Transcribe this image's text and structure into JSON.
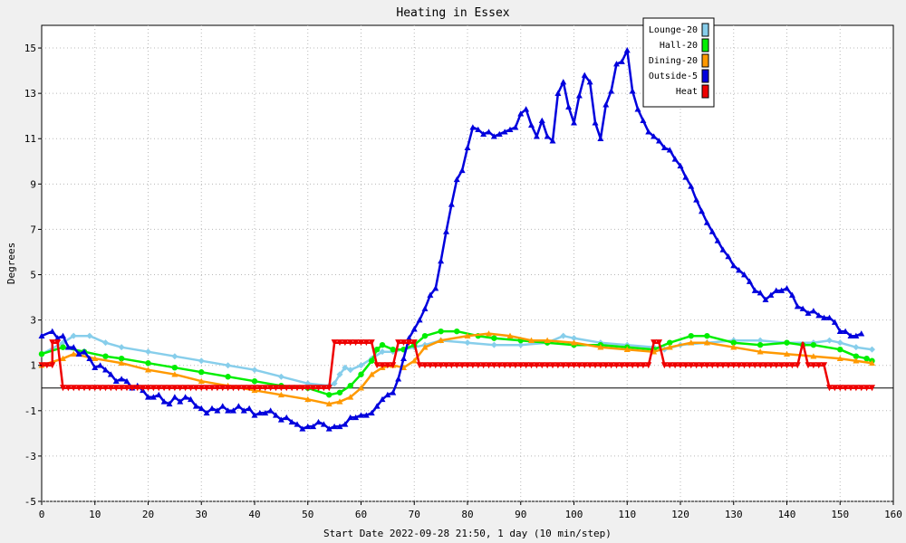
{
  "chart_data": {
    "type": "line",
    "title": "Heating in Essex",
    "xlabel": "Start Date 2022-09-28 21:50, 1 day (10 min/step)",
    "ylabel": "Degrees",
    "xlim": [
      0,
      160
    ],
    "ylim": [
      -5,
      16
    ],
    "x_ticks": [
      0,
      10,
      20,
      30,
      40,
      50,
      60,
      70,
      80,
      90,
      100,
      110,
      120,
      130,
      140,
      150,
      160
    ],
    "y_ticks": [
      -5,
      -3,
      -1,
      1,
      3,
      5,
      7,
      9,
      11,
      13,
      15
    ],
    "zero_line": 0,
    "grid": true,
    "legend_position": "top-right",
    "series": [
      {
        "name": "Lounge-20",
        "color": "#87ceeb",
        "marker": "diamond",
        "points": [
          [
            0,
            1.5
          ],
          [
            4,
            2
          ],
          [
            6,
            2.3
          ],
          [
            9,
            2.3
          ],
          [
            12,
            2
          ],
          [
            15,
            1.8
          ],
          [
            20,
            1.6
          ],
          [
            25,
            1.4
          ],
          [
            30,
            1.2
          ],
          [
            35,
            1
          ],
          [
            40,
            0.8
          ],
          [
            45,
            0.5
          ],
          [
            50,
            0.2
          ],
          [
            54,
            0.1
          ],
          [
            55,
            0.2
          ],
          [
            56,
            0.6
          ],
          [
            57,
            0.9
          ],
          [
            58,
            0.8
          ],
          [
            60,
            1
          ],
          [
            62,
            1.3
          ],
          [
            64,
            1.6
          ],
          [
            66,
            1.6
          ],
          [
            68,
            1.7
          ],
          [
            70,
            1.8
          ],
          [
            72,
            1.9
          ],
          [
            75,
            2.1
          ],
          [
            80,
            2
          ],
          [
            85,
            1.9
          ],
          [
            90,
            1.9
          ],
          [
            95,
            2
          ],
          [
            98,
            2.3
          ],
          [
            100,
            2.2
          ],
          [
            105,
            2
          ],
          [
            110,
            1.9
          ],
          [
            115,
            1.8
          ],
          [
            117,
            1.7
          ],
          [
            120,
            1.9
          ],
          [
            125,
            2
          ],
          [
            130,
            2.1
          ],
          [
            135,
            2.1
          ],
          [
            140,
            2
          ],
          [
            145,
            2
          ],
          [
            148,
            2.1
          ],
          [
            150,
            2
          ],
          [
            153,
            1.8
          ],
          [
            156,
            1.7
          ]
        ]
      },
      {
        "name": "Hall-20",
        "color": "#00ee00",
        "marker": "circle",
        "points": [
          [
            0,
            1.5
          ],
          [
            4,
            1.8
          ],
          [
            8,
            1.6
          ],
          [
            12,
            1.4
          ],
          [
            15,
            1.3
          ],
          [
            20,
            1.1
          ],
          [
            25,
            0.9
          ],
          [
            30,
            0.7
          ],
          [
            35,
            0.5
          ],
          [
            40,
            0.3
          ],
          [
            45,
            0.1
          ],
          [
            50,
            0
          ],
          [
            54,
            -0.3
          ],
          [
            56,
            -0.2
          ],
          [
            58,
            0.1
          ],
          [
            60,
            0.6
          ],
          [
            62,
            1.2
          ],
          [
            63,
            1.7
          ],
          [
            64,
            1.9
          ],
          [
            66,
            1.7
          ],
          [
            68,
            1.7
          ],
          [
            70,
            1.9
          ],
          [
            72,
            2.3
          ],
          [
            75,
            2.5
          ],
          [
            78,
            2.5
          ],
          [
            82,
            2.3
          ],
          [
            85,
            2.2
          ],
          [
            90,
            2.1
          ],
          [
            95,
            2
          ],
          [
            100,
            1.9
          ],
          [
            105,
            1.9
          ],
          [
            110,
            1.8
          ],
          [
            115,
            1.7
          ],
          [
            118,
            2
          ],
          [
            122,
            2.3
          ],
          [
            125,
            2.3
          ],
          [
            130,
            2
          ],
          [
            135,
            1.9
          ],
          [
            140,
            2
          ],
          [
            143,
            1.9
          ],
          [
            145,
            1.9
          ],
          [
            150,
            1.7
          ],
          [
            153,
            1.4
          ],
          [
            155,
            1.3
          ],
          [
            156,
            1.2
          ]
        ]
      },
      {
        "name": "Dining-20",
        "color": "#ff9900",
        "marker": "triangle-up",
        "points": [
          [
            0,
            1
          ],
          [
            4,
            1.3
          ],
          [
            6,
            1.5
          ],
          [
            10,
            1.3
          ],
          [
            15,
            1.1
          ],
          [
            20,
            0.8
          ],
          [
            25,
            0.6
          ],
          [
            30,
            0.3
          ],
          [
            35,
            0.1
          ],
          [
            40,
            -0.1
          ],
          [
            45,
            -0.3
          ],
          [
            50,
            -0.5
          ],
          [
            54,
            -0.7
          ],
          [
            56,
            -0.6
          ],
          [
            58,
            -0.4
          ],
          [
            60,
            0
          ],
          [
            62,
            0.6
          ],
          [
            64,
            0.9
          ],
          [
            66,
            1
          ],
          [
            68,
            0.9
          ],
          [
            70,
            1.2
          ],
          [
            72,
            1.8
          ],
          [
            75,
            2.1
          ],
          [
            80,
            2.3
          ],
          [
            84,
            2.4
          ],
          [
            88,
            2.3
          ],
          [
            92,
            2.1
          ],
          [
            95,
            2.1
          ],
          [
            100,
            2
          ],
          [
            105,
            1.8
          ],
          [
            110,
            1.7
          ],
          [
            115,
            1.6
          ],
          [
            118,
            1.8
          ],
          [
            122,
            2
          ],
          [
            125,
            2
          ],
          [
            130,
            1.8
          ],
          [
            135,
            1.6
          ],
          [
            140,
            1.5
          ],
          [
            145,
            1.4
          ],
          [
            150,
            1.3
          ],
          [
            153,
            1.2
          ],
          [
            156,
            1.1
          ]
        ]
      },
      {
        "name": "Outside-5",
        "color": "#0000dd",
        "marker": "triangle-up",
        "points": [
          [
            0,
            2.3
          ],
          [
            2,
            2.5
          ],
          [
            3,
            2.2
          ],
          [
            4,
            2.3
          ],
          [
            5,
            1.8
          ],
          [
            6,
            1.8
          ],
          [
            7,
            1.5
          ],
          [
            8,
            1.6
          ],
          [
            9,
            1.3
          ],
          [
            10,
            0.9
          ],
          [
            11,
            1
          ],
          [
            12,
            0.8
          ],
          [
            13,
            0.6
          ],
          [
            14,
            0.3
          ],
          [
            15,
            0.4
          ],
          [
            16,
            0.3
          ],
          [
            17,
            0
          ],
          [
            18,
            0.1
          ],
          [
            19,
            -0.1
          ],
          [
            20,
            -0.4
          ],
          [
            21,
            -0.4
          ],
          [
            22,
            -0.3
          ],
          [
            23,
            -0.6
          ],
          [
            24,
            -0.7
          ],
          [
            25,
            -0.4
          ],
          [
            26,
            -0.6
          ],
          [
            27,
            -0.4
          ],
          [
            28,
            -0.5
          ],
          [
            29,
            -0.8
          ],
          [
            30,
            -0.9
          ],
          [
            31,
            -1.1
          ],
          [
            32,
            -0.9
          ],
          [
            33,
            -1
          ],
          [
            34,
            -0.8
          ],
          [
            35,
            -1
          ],
          [
            36,
            -1
          ],
          [
            37,
            -0.8
          ],
          [
            38,
            -1
          ],
          [
            39,
            -0.9
          ],
          [
            40,
            -1.2
          ],
          [
            41,
            -1.1
          ],
          [
            42,
            -1.1
          ],
          [
            43,
            -1
          ],
          [
            44,
            -1.2
          ],
          [
            45,
            -1.4
          ],
          [
            46,
            -1.3
          ],
          [
            47,
            -1.5
          ],
          [
            48,
            -1.6
          ],
          [
            49,
            -1.8
          ],
          [
            50,
            -1.7
          ],
          [
            51,
            -1.7
          ],
          [
            52,
            -1.5
          ],
          [
            53,
            -1.6
          ],
          [
            54,
            -1.8
          ],
          [
            55,
            -1.7
          ],
          [
            56,
            -1.7
          ],
          [
            57,
            -1.6
          ],
          [
            58,
            -1.3
          ],
          [
            59,
            -1.3
          ],
          [
            60,
            -1.2
          ],
          [
            61,
            -1.2
          ],
          [
            62,
            -1.1
          ],
          [
            63,
            -0.8
          ],
          [
            64,
            -0.5
          ],
          [
            65,
            -0.3
          ],
          [
            66,
            -0.2
          ],
          [
            67,
            0.4
          ],
          [
            68,
            1.3
          ],
          [
            69,
            2.2
          ],
          [
            70,
            2.6
          ],
          [
            71,
            3
          ],
          [
            72,
            3.5
          ],
          [
            73,
            4.1
          ],
          [
            74,
            4.4
          ],
          [
            75,
            5.6
          ],
          [
            76,
            6.9
          ],
          [
            77,
            8.1
          ],
          [
            78,
            9.2
          ],
          [
            79,
            9.6
          ],
          [
            80,
            10.6
          ],
          [
            81,
            11.5
          ],
          [
            82,
            11.4
          ],
          [
            83,
            11.2
          ],
          [
            84,
            11.3
          ],
          [
            85,
            11.1
          ],
          [
            86,
            11.2
          ],
          [
            87,
            11.3
          ],
          [
            88,
            11.4
          ],
          [
            89,
            11.5
          ],
          [
            90,
            12.1
          ],
          [
            91,
            12.3
          ],
          [
            92,
            11.6
          ],
          [
            93,
            11.1
          ],
          [
            94,
            11.8
          ],
          [
            95,
            11.1
          ],
          [
            96,
            10.9
          ],
          [
            97,
            13
          ],
          [
            98,
            13.5
          ],
          [
            99,
            12.4
          ],
          [
            100,
            11.7
          ],
          [
            101,
            12.9
          ],
          [
            102,
            13.8
          ],
          [
            103,
            13.5
          ],
          [
            104,
            11.7
          ],
          [
            105,
            11
          ],
          [
            106,
            12.5
          ],
          [
            107,
            13.1
          ],
          [
            108,
            14.3
          ],
          [
            109,
            14.4
          ],
          [
            110,
            14.9
          ],
          [
            111,
            13.1
          ],
          [
            112,
            12.3
          ],
          [
            113,
            11.8
          ],
          [
            114,
            11.3
          ],
          [
            115,
            11.1
          ],
          [
            116,
            10.9
          ],
          [
            117,
            10.6
          ],
          [
            118,
            10.5
          ],
          [
            119,
            10.1
          ],
          [
            120,
            9.8
          ],
          [
            121,
            9.3
          ],
          [
            122,
            8.9
          ],
          [
            123,
            8.3
          ],
          [
            124,
            7.8
          ],
          [
            125,
            7.3
          ],
          [
            126,
            6.9
          ],
          [
            127,
            6.5
          ],
          [
            128,
            6.1
          ],
          [
            129,
            5.8
          ],
          [
            130,
            5.4
          ],
          [
            131,
            5.2
          ],
          [
            132,
            5
          ],
          [
            133,
            4.7
          ],
          [
            134,
            4.3
          ],
          [
            135,
            4.2
          ],
          [
            136,
            3.9
          ],
          [
            137,
            4.1
          ],
          [
            138,
            4.3
          ],
          [
            139,
            4.3
          ],
          [
            140,
            4.4
          ],
          [
            141,
            4.1
          ],
          [
            142,
            3.6
          ],
          [
            143,
            3.5
          ],
          [
            144,
            3.3
          ],
          [
            145,
            3.4
          ],
          [
            146,
            3.2
          ],
          [
            147,
            3.1
          ],
          [
            148,
            3.1
          ],
          [
            149,
            2.9
          ],
          [
            150,
            2.5
          ],
          [
            151,
            2.5
          ],
          [
            152,
            2.3
          ],
          [
            153,
            2.3
          ],
          [
            154,
            2.4
          ]
        ]
      },
      {
        "name": "Heat",
        "color": "#ee0000",
        "marker": "triangle-down",
        "points": [
          [
            0,
            1
          ],
          [
            2,
            1
          ],
          [
            2,
            2
          ],
          [
            3,
            2
          ],
          [
            4,
            0
          ],
          [
            54,
            0
          ],
          [
            55,
            2
          ],
          [
            62,
            2
          ],
          [
            63,
            1
          ],
          [
            66,
            1
          ],
          [
            67,
            2
          ],
          [
            70,
            2
          ],
          [
            71,
            1
          ],
          [
            114,
            1
          ],
          [
            115,
            2
          ],
          [
            116,
            2
          ],
          [
            117,
            1
          ],
          [
            142,
            1
          ],
          [
            143,
            2
          ],
          [
            144,
            1
          ],
          [
            147,
            1
          ],
          [
            148,
            0
          ],
          [
            156,
            0
          ]
        ]
      }
    ]
  }
}
